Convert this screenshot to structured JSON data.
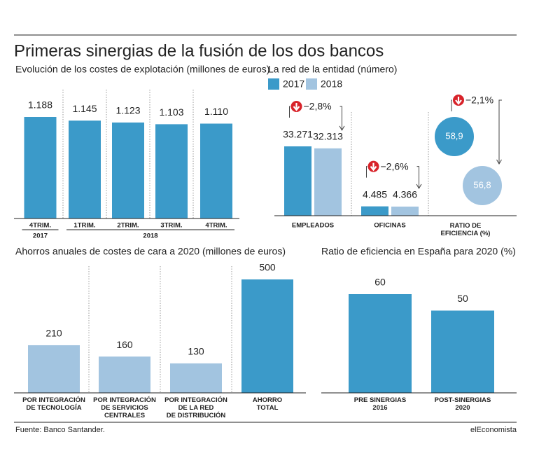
{
  "title": "Primeras sinergias de la fusión de los dos bancos",
  "source": "Fuente: Banco Santander.",
  "brand": "elEconomista",
  "chart_data": [
    {
      "type": "bar",
      "title": "Evolución de los costes de explotación (millones de euros)",
      "categories": [
        "4TRIM.",
        "1TRIM.",
        "2TRIM.",
        "3TRIM.",
        "4TRIM."
      ],
      "category_groups": [
        "2017",
        "2018"
      ],
      "values": [
        1188,
        1145,
        1123,
        1103,
        1110
      ],
      "value_labels": [
        "1.188",
        "1.145",
        "1.123",
        "1.103",
        "1.110"
      ],
      "color": "#3b9ac9"
    },
    {
      "type": "grouped",
      "title": "La red de la entidad (número)",
      "categories": [
        "EMPLEADOS",
        "OFICINAS",
        "RATIO DE\nEFICIENCIA (%)"
      ],
      "category_shapes": [
        "bar",
        "bar",
        "circle"
      ],
      "series": [
        {
          "name": "2017",
          "color": "#3b9ac9",
          "values": [
            33271,
            4485,
            58.9
          ],
          "value_labels": [
            "33.271",
            "4.485",
            "58,9"
          ]
        },
        {
          "name": "2018",
          "color": "#a2c4e0",
          "values": [
            32313,
            4366,
            56.8
          ],
          "value_labels": [
            "32.313",
            "4.366",
            "56,8"
          ]
        }
      ],
      "changes": [
        -2.8,
        -2.6,
        -2.1
      ],
      "change_labels": [
        "−2,8%",
        "−2,6%",
        "−2,1%"
      ]
    },
    {
      "type": "bar",
      "title": "Ahorros anuales de costes de cara a 2020 (millones de euros)",
      "categories": [
        "POR INTEGRACIÓN\nDE TECNOLOGÍA",
        "POR INTEGRACIÓN\nDE SERVICIOS\nCENTRALES",
        "POR INTEGRACIÓN\nDE LA RED\nDE DISTRIBUCIÓN",
        "AHORRO\nTOTAL"
      ],
      "values": [
        210,
        160,
        130,
        500
      ],
      "colors": [
        "#a2c4e0",
        "#a2c4e0",
        "#a2c4e0",
        "#3b9ac9"
      ]
    },
    {
      "type": "bar",
      "title": "Ratio de eficiencia en España para 2020 (%)",
      "categories": [
        "PRE SINERGIAS\n2016",
        "POST-SINERGIAS\n2020"
      ],
      "values": [
        60,
        50
      ],
      "color": "#3b9ac9"
    }
  ]
}
